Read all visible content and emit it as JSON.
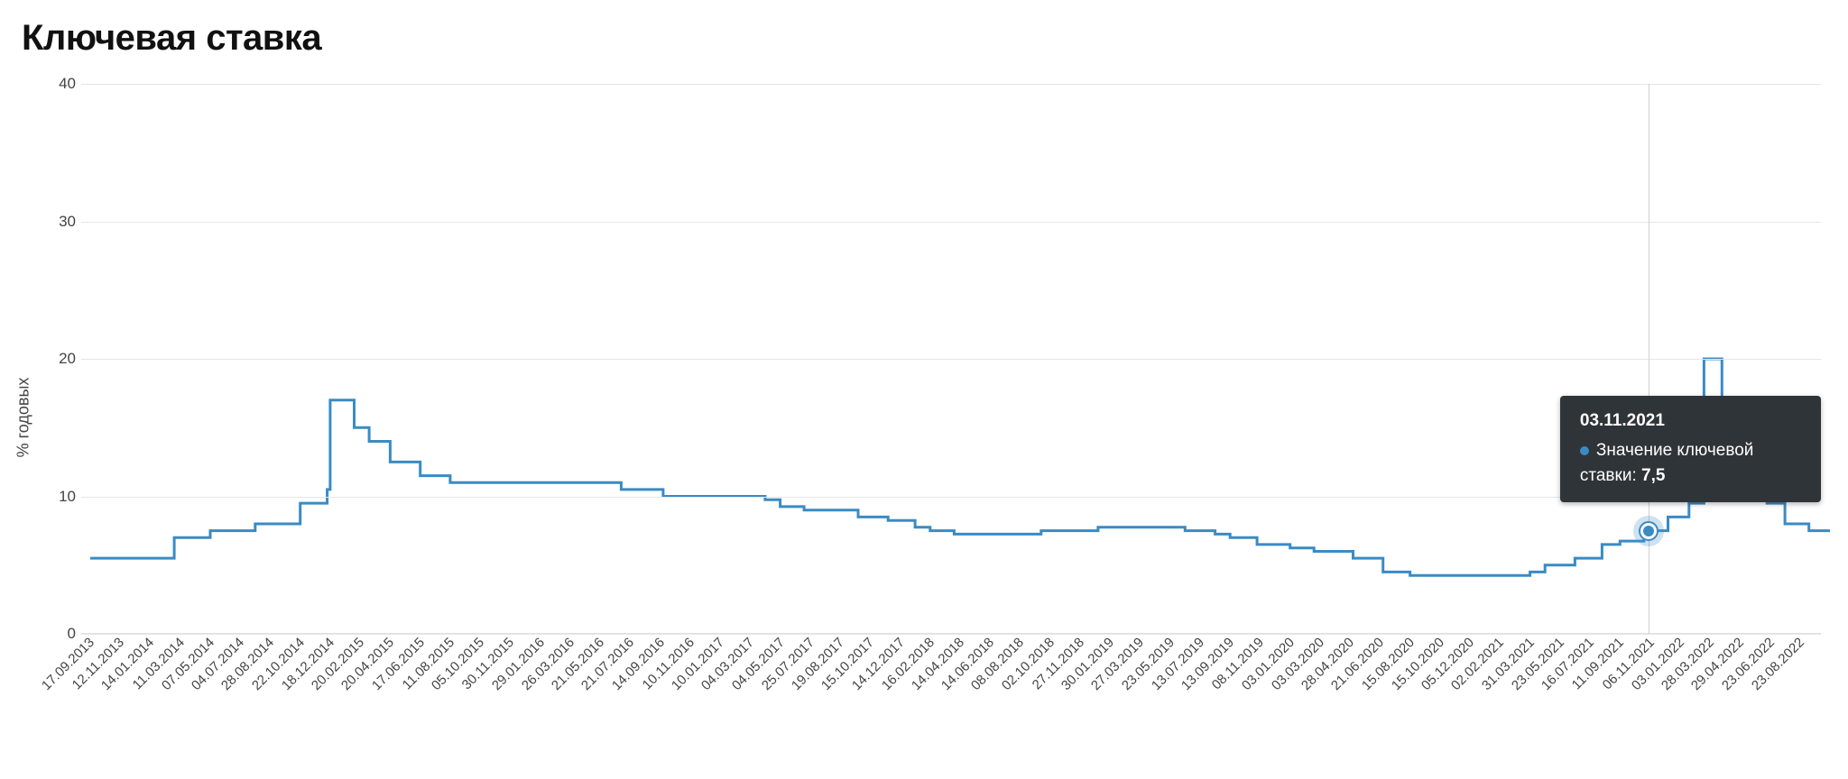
{
  "chart": {
    "type": "step-line",
    "title": "Ключевая ставка",
    "y_axis_label": "% годовых",
    "background_color": "#ffffff",
    "grid_color": "#e6e6e6",
    "axis_text_color": "#444444",
    "title_color": "#111111",
    "title_fontsize": 40,
    "label_fontsize": 17,
    "line_color": "#3a8bc4",
    "line_width": 3,
    "ylim": [
      0,
      40
    ],
    "yticks": [
      0,
      10,
      20,
      30,
      40
    ],
    "x_labels": [
      {
        "idx": 0,
        "label": "17.09.2013"
      },
      {
        "idx": 1,
        "label": "12.11.2013"
      },
      {
        "idx": 2,
        "label": "14.01.2014"
      },
      {
        "idx": 3,
        "label": "11.03.2014"
      },
      {
        "idx": 4,
        "label": "07.05.2014"
      },
      {
        "idx": 5,
        "label": "04.07.2014"
      },
      {
        "idx": 6,
        "label": "28.08.2014"
      },
      {
        "idx": 7,
        "label": "22.10.2014"
      },
      {
        "idx": 8,
        "label": "18.12.2014"
      },
      {
        "idx": 9,
        "label": "20.02.2015"
      },
      {
        "idx": 10,
        "label": "20.04.2015"
      },
      {
        "idx": 11,
        "label": "17.06.2015"
      },
      {
        "idx": 12,
        "label": "11.08.2015"
      },
      {
        "idx": 13,
        "label": "05.10.2015"
      },
      {
        "idx": 14,
        "label": "30.11.2015"
      },
      {
        "idx": 15,
        "label": "29.01.2016"
      },
      {
        "idx": 16,
        "label": "26.03.2016"
      },
      {
        "idx": 17,
        "label": "21.05.2016"
      },
      {
        "idx": 18,
        "label": "21.07.2016"
      },
      {
        "idx": 19,
        "label": "14.09.2016"
      },
      {
        "idx": 20,
        "label": "10.11.2016"
      },
      {
        "idx": 21,
        "label": "10.01.2017"
      },
      {
        "idx": 22,
        "label": "04.03.2017"
      },
      {
        "idx": 23,
        "label": "04.05.2017"
      },
      {
        "idx": 24,
        "label": "25.07.2017"
      },
      {
        "idx": 25,
        "label": "19.08.2017"
      },
      {
        "idx": 26,
        "label": "15.10.2017"
      },
      {
        "idx": 27,
        "label": "14.12.2017"
      },
      {
        "idx": 28,
        "label": "16.02.2018"
      },
      {
        "idx": 29,
        "label": "14.04.2018"
      },
      {
        "idx": 30,
        "label": "14.06.2018"
      },
      {
        "idx": 31,
        "label": "08.08.2018"
      },
      {
        "idx": 32,
        "label": "02.10.2018"
      },
      {
        "idx": 33,
        "label": "27.11.2018"
      },
      {
        "idx": 34,
        "label": "30.01.2019"
      },
      {
        "idx": 35,
        "label": "27.03.2019"
      },
      {
        "idx": 36,
        "label": "23.05.2019"
      },
      {
        "idx": 37,
        "label": "13.07.2019"
      },
      {
        "idx": 38,
        "label": "13.09.2019"
      },
      {
        "idx": 39,
        "label": "08.11.2019"
      },
      {
        "idx": 40,
        "label": "03.01.2020"
      },
      {
        "idx": 41,
        "label": "03.03.2020"
      },
      {
        "idx": 42,
        "label": "28.04.2020"
      },
      {
        "idx": 43,
        "label": "21.06.2020"
      },
      {
        "idx": 44,
        "label": "15.08.2020"
      },
      {
        "idx": 45,
        "label": "15.10.2020"
      },
      {
        "idx": 46,
        "label": "05.12.2020"
      },
      {
        "idx": 47,
        "label": "02.02.2021"
      },
      {
        "idx": 48,
        "label": "31.03.2021"
      },
      {
        "idx": 49,
        "label": "23.05.2021"
      },
      {
        "idx": 50,
        "label": "16.07.2021"
      },
      {
        "idx": 51,
        "label": "11.09.2021"
      },
      {
        "idx": 52,
        "label": "06.11.2021"
      },
      {
        "idx": 53,
        "label": "03.01.2022"
      },
      {
        "idx": 54,
        "label": "28.03.2022"
      },
      {
        "idx": 55,
        "label": "29.04.2022"
      },
      {
        "idx": 56,
        "label": "23.06.2022"
      },
      {
        "idx": 57,
        "label": "23.08.2022"
      }
    ],
    "series": {
      "name": "rate",
      "points": [
        {
          "idx": 0.0,
          "y": 5.5
        },
        {
          "idx": 2.8,
          "y": 5.5
        },
        {
          "idx": 2.8,
          "y": 7.0
        },
        {
          "idx": 4.0,
          "y": 7.0
        },
        {
          "idx": 4.0,
          "y": 7.5
        },
        {
          "idx": 5.5,
          "y": 7.5
        },
        {
          "idx": 5.5,
          "y": 8.0
        },
        {
          "idx": 7.0,
          "y": 8.0
        },
        {
          "idx": 7.0,
          "y": 9.5
        },
        {
          "idx": 7.9,
          "y": 9.5
        },
        {
          "idx": 7.9,
          "y": 10.5
        },
        {
          "idx": 8.0,
          "y": 10.5
        },
        {
          "idx": 8.0,
          "y": 17.0
        },
        {
          "idx": 8.8,
          "y": 17.0
        },
        {
          "idx": 8.8,
          "y": 15.0
        },
        {
          "idx": 9.3,
          "y": 15.0
        },
        {
          "idx": 9.3,
          "y": 14.0
        },
        {
          "idx": 10.0,
          "y": 14.0
        },
        {
          "idx": 10.0,
          "y": 12.5
        },
        {
          "idx": 11.0,
          "y": 12.5
        },
        {
          "idx": 11.0,
          "y": 11.5
        },
        {
          "idx": 12.0,
          "y": 11.5
        },
        {
          "idx": 12.0,
          "y": 11.0
        },
        {
          "idx": 17.7,
          "y": 11.0
        },
        {
          "idx": 17.7,
          "y": 10.5
        },
        {
          "idx": 19.1,
          "y": 10.5
        },
        {
          "idx": 19.1,
          "y": 10.0
        },
        {
          "idx": 22.5,
          "y": 10.0
        },
        {
          "idx": 22.5,
          "y": 9.75
        },
        {
          "idx": 23.0,
          "y": 9.75
        },
        {
          "idx": 23.0,
          "y": 9.25
        },
        {
          "idx": 23.8,
          "y": 9.25
        },
        {
          "idx": 23.8,
          "y": 9.0
        },
        {
          "idx": 25.6,
          "y": 9.0
        },
        {
          "idx": 25.6,
          "y": 8.5
        },
        {
          "idx": 26.6,
          "y": 8.5
        },
        {
          "idx": 26.6,
          "y": 8.25
        },
        {
          "idx": 27.5,
          "y": 8.25
        },
        {
          "idx": 27.5,
          "y": 7.75
        },
        {
          "idx": 28.0,
          "y": 7.75
        },
        {
          "idx": 28.0,
          "y": 7.5
        },
        {
          "idx": 28.8,
          "y": 7.5
        },
        {
          "idx": 28.8,
          "y": 7.25
        },
        {
          "idx": 31.7,
          "y": 7.25
        },
        {
          "idx": 31.7,
          "y": 7.5
        },
        {
          "idx": 33.6,
          "y": 7.5
        },
        {
          "idx": 33.6,
          "y": 7.75
        },
        {
          "idx": 36.5,
          "y": 7.75
        },
        {
          "idx": 36.5,
          "y": 7.5
        },
        {
          "idx": 37.5,
          "y": 7.5
        },
        {
          "idx": 37.5,
          "y": 7.25
        },
        {
          "idx": 38.0,
          "y": 7.25
        },
        {
          "idx": 38.0,
          "y": 7.0
        },
        {
          "idx": 38.9,
          "y": 7.0
        },
        {
          "idx": 38.9,
          "y": 6.5
        },
        {
          "idx": 40.0,
          "y": 6.5
        },
        {
          "idx": 40.0,
          "y": 6.25
        },
        {
          "idx": 40.8,
          "y": 6.25
        },
        {
          "idx": 40.8,
          "y": 6.0
        },
        {
          "idx": 42.1,
          "y": 6.0
        },
        {
          "idx": 42.1,
          "y": 5.5
        },
        {
          "idx": 43.1,
          "y": 5.5
        },
        {
          "idx": 43.1,
          "y": 4.5
        },
        {
          "idx": 44.0,
          "y": 4.5
        },
        {
          "idx": 44.0,
          "y": 4.25
        },
        {
          "idx": 48.0,
          "y": 4.25
        },
        {
          "idx": 48.0,
          "y": 4.5
        },
        {
          "idx": 48.5,
          "y": 4.5
        },
        {
          "idx": 48.5,
          "y": 5.0
        },
        {
          "idx": 49.5,
          "y": 5.0
        },
        {
          "idx": 49.5,
          "y": 5.5
        },
        {
          "idx": 50.4,
          "y": 5.5
        },
        {
          "idx": 50.4,
          "y": 6.5
        },
        {
          "idx": 51.0,
          "y": 6.5
        },
        {
          "idx": 51.0,
          "y": 6.75
        },
        {
          "idx": 51.8,
          "y": 6.75
        },
        {
          "idx": 51.8,
          "y": 7.5
        },
        {
          "idx": 52.6,
          "y": 7.5
        },
        {
          "idx": 52.6,
          "y": 8.5
        },
        {
          "idx": 53.3,
          "y": 8.5
        },
        {
          "idx": 53.3,
          "y": 9.5
        },
        {
          "idx": 53.8,
          "y": 9.5
        },
        {
          "idx": 53.8,
          "y": 20.0
        },
        {
          "idx": 54.4,
          "y": 20.0
        },
        {
          "idx": 54.4,
          "y": 17.0
        },
        {
          "idx": 55.0,
          "y": 17.0
        },
        {
          "idx": 55.0,
          "y": 14.0
        },
        {
          "idx": 55.4,
          "y": 14.0
        },
        {
          "idx": 55.4,
          "y": 11.0
        },
        {
          "idx": 55.9,
          "y": 11.0
        },
        {
          "idx": 55.9,
          "y": 9.5
        },
        {
          "idx": 56.5,
          "y": 9.5
        },
        {
          "idx": 56.5,
          "y": 8.0
        },
        {
          "idx": 57.3,
          "y": 8.0
        },
        {
          "idx": 57.3,
          "y": 7.5
        },
        {
          "idx": 58.0,
          "y": 7.5
        }
      ]
    },
    "highlight": {
      "idx": 51.95,
      "y": 7.5,
      "date_label": "03.11.2021",
      "series_label": "Значение ключевой ставки:",
      "value_label": "7,5",
      "tooltip_bg": "#2f3438",
      "tooltip_text_color": "#ffffff",
      "marker_color": "#3a8bc4"
    }
  }
}
